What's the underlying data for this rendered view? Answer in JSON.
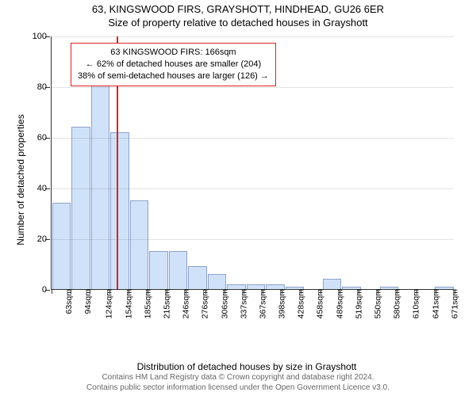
{
  "title": {
    "line1": "63, KINGSWOOD FIRS, GRAYSHOTT, HINDHEAD, GU26 6ER",
    "line2": "Size of property relative to detached houses in Grayshott"
  },
  "chart": {
    "type": "histogram",
    "ylabel": "Number of detached properties",
    "xlabel": "Distribution of detached houses by size in Grayshott",
    "ylim": [
      0,
      100
    ],
    "ytick_step": 20,
    "bar_fill": "#cfe2f9",
    "bar_border": "rgba(20,40,120,0.35)",
    "grid_color": "rgba(100,100,100,0.18)",
    "background_color": "#ffffff",
    "axis_color": "#333333",
    "categories": [
      "63sqm",
      "94sqm",
      "124sqm",
      "154sqm",
      "185sqm",
      "215sqm",
      "246sqm",
      "276sqm",
      "306sqm",
      "337sqm",
      "367sqm",
      "398sqm",
      "428sqm",
      "458sqm",
      "489sqm",
      "519sqm",
      "550sqm",
      "580sqm",
      "610sqm",
      "641sqm",
      "671sqm"
    ],
    "values": [
      34,
      64,
      88,
      62,
      35,
      15,
      15,
      9,
      6,
      2,
      2,
      2,
      1,
      0,
      4,
      1,
      0,
      1,
      0,
      0,
      1
    ],
    "reference": {
      "color": "#d22",
      "bin_index": 3,
      "position_in_bin": 0.39,
      "annotation_lines": [
        "63 KINGSWOOD FIRS: 166sqm",
        "← 62% of detached houses are smaller (204)",
        "38% of semi-detached houses are larger (126) →"
      ]
    }
  },
  "footer": {
    "line1": "Contains HM Land Registry data © Crown copyright and database right 2024.",
    "line2": "Contains public sector information licensed under the Open Government Licence v3.0."
  }
}
